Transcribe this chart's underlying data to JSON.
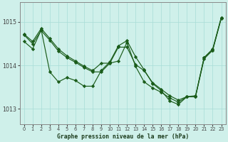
{
  "title": "Graphe pression niveau de la mer (hPa)",
  "background_color": "#cff0ea",
  "grid_color": "#a8ddd6",
  "line_color": "#1a5c1a",
  "x_min": 0,
  "x_max": 23,
  "y_min": 1012.65,
  "y_max": 1015.45,
  "yticks": [
    1013,
    1014,
    1015
  ],
  "curve1": [
    1014.72,
    1014.55,
    1014.85,
    1014.6,
    1014.35,
    1014.2,
    1014.1,
    1013.98,
    1013.88,
    1014.05,
    1014.05,
    1014.42,
    1014.42,
    1014.05,
    1013.92,
    1013.62,
    1013.48,
    1013.33,
    1013.22,
    1013.3,
    1013.3,
    1014.2,
    1014.38,
    1015.12
  ],
  "curve2": [
    1014.55,
    1014.38,
    1014.55,
    1013.85,
    1013.62,
    1013.72,
    1013.65,
    1013.52,
    1013.52,
    1013.88,
    1014.1,
    1014.45,
    1014.55,
    1014.2,
    1013.9,
    1013.58,
    1013.42,
    1013.18,
    1013.12,
    1013.28,
    1013.3,
    1014.18,
    1014.38,
    1015.08
  ],
  "curve3": [
    1014.72,
    1014.55,
    1014.85,
    1014.6,
    1014.35,
    1014.2,
    1014.1,
    1013.98,
    1013.88,
    1013.88,
    1014.08,
    1014.1,
    1014.55,
    1013.95,
    1013.6,
    1013.45,
    1013.35,
    1013.22,
    1013.12,
    1013.28,
    1013.3,
    1014.18,
    1014.38,
    1015.08
  ]
}
